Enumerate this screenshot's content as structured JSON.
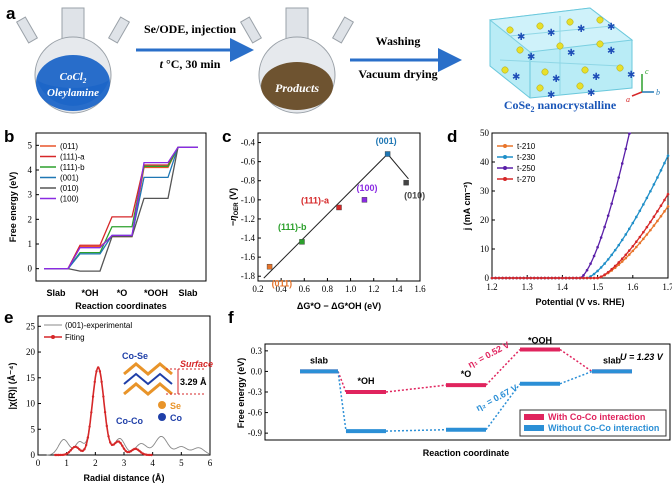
{
  "panel_a": {
    "label": "a",
    "flask1_line1": "CoCl",
    "flask1_sub": "2",
    "flask1_line2": "Oleylamine",
    "arrow1_top": "Se/ODE, injection",
    "arrow1_bottom_t": "t",
    "arrow1_bottom_rest": " °C, 30 min",
    "flask2_label": "Products",
    "arrow2_top": "Washing",
    "arrow2_bottom": "Vacuum drying",
    "crystal_label": "CoSe",
    "crystal_sub": "2",
    "crystal_label_rest": " nanocrystalline",
    "axis_c": "c",
    "axis_a": "a",
    "axis_b": "b",
    "colors": {
      "solution": "#1e66c8",
      "product": "#7a5a32",
      "crystal": "#5ad1e8",
      "label": "#1a56b8"
    }
  },
  "panel_b": {
    "label": "b",
    "ylabel": "Free energy (eV)",
    "xlabel": "Reaction coordinates",
    "yticks": [
      "5",
      "4",
      "3",
      "2",
      "1",
      "0"
    ],
    "xticks": [
      "Slab",
      "*OH",
      "*O",
      "*OOH",
      "Slab"
    ],
    "legend": [
      "(011)",
      "(111)-a",
      "(111)-b",
      "(001)",
      "(010)",
      "(100)"
    ]
  },
  "panel_c": {
    "label": "c",
    "ylabel": "−η",
    "ylabel_sub": "OER",
    "ylabel_unit": " (V)",
    "xlabel": "ΔG*O − ΔG*OH (eV)",
    "yticks": [
      "-0.4",
      "-0.6",
      "-0.8",
      "-1.0",
      "-1.2",
      "-1.4",
      "-1.6",
      "-1.8"
    ],
    "xticks": [
      "0.2",
      "0.4",
      "0.6",
      "0.8",
      "1.0",
      "1.2",
      "1.4",
      "1.6"
    ],
    "point_labels": [
      "(011)",
      "(111)-b",
      "(111)-a",
      "(100)",
      "(001)",
      "(010)"
    ]
  },
  "panel_d": {
    "label": "d",
    "ylabel": "j (mA cm⁻²)",
    "xlabel": "Potential (V vs. RHE)",
    "yticks": [
      "50",
      "40",
      "30",
      "20",
      "10",
      "0"
    ],
    "xticks": [
      "1.2",
      "1.3",
      "1.4",
      "1.5",
      "1.6",
      "1.7"
    ],
    "legend": [
      "t-210",
      "t-230",
      "t-250",
      "t-270"
    ]
  },
  "panel_e": {
    "label": "e",
    "ylabel": "|χ(R)| (Å⁻⁴)",
    "xlabel": "Radial distance (Å)",
    "yticks": [
      "25",
      "20",
      "15",
      "10",
      "5",
      "0"
    ],
    "xticks": [
      "0",
      "1",
      "2",
      "3",
      "4",
      "5",
      "6"
    ],
    "legend_exp": "(001)-experimental",
    "legend_fit": "Fiting",
    "peak1": "Co-Se",
    "peak2": "Co-Co",
    "surface": "Surface",
    "distance": "3.29 Å",
    "atom1": "Se",
    "atom2": "Co"
  },
  "panel_f": {
    "label": "f",
    "ylabel": "Free energy (eV)",
    "xlabel": "Reaction coordinate",
    "yticks": [
      "0.3",
      "0.0",
      "-0.3",
      "-0.6",
      "-0.9"
    ],
    "step_labels": [
      "slab",
      "*OH",
      "*O",
      "*OOH",
      "slab"
    ],
    "eta1": "η₁ = 0.52 V",
    "eta2": "η₂ = 0.67 V",
    "potential": "U = 1.23 V",
    "legend": [
      "With Co-Co interaction",
      "Without Co-Co interaction"
    ],
    "colors": {
      "with": "#e0245e",
      "without": "#2b8fd6"
    }
  },
  "chart_data": [
    {
      "type": "line",
      "title": "b",
      "xlabel": "Reaction coordinates",
      "ylabel": "Free energy (eV)",
      "categories": [
        "Slab",
        "*OH",
        "*O",
        "*OOH",
        "Slab"
      ],
      "ylim": [
        -0.5,
        5.5
      ],
      "series": [
        {
          "name": "(011)",
          "color": "#e8542a",
          "values": [
            0,
            0.9,
            1.3,
            4.1,
            4.92
          ]
        },
        {
          "name": "(111)-a",
          "color": "#d62728",
          "values": [
            0,
            0.95,
            2.1,
            4.2,
            4.92
          ]
        },
        {
          "name": "(111)-b",
          "color": "#2ca02c",
          "values": [
            0,
            0.65,
            1.7,
            4.15,
            4.92
          ]
        },
        {
          "name": "(001)",
          "color": "#1f77b4",
          "values": [
            0,
            0.6,
            1.35,
            3.7,
            4.92
          ]
        },
        {
          "name": "(010)",
          "color": "#555555",
          "values": [
            0,
            -0.1,
            1.3,
            2.85,
            4.92
          ]
        },
        {
          "name": "(100)",
          "color": "#8a2be2",
          "values": [
            0,
            0.85,
            1.35,
            4.3,
            4.92
          ]
        }
      ]
    },
    {
      "type": "scatter",
      "title": "c",
      "xlabel": "ΔG*O − ΔG*OH (eV)",
      "ylabel": "−η OER (V)",
      "xlim": [
        0.2,
        1.6
      ],
      "ylim": [
        -1.85,
        -0.3
      ],
      "points": [
        {
          "name": "(011)",
          "x": 0.3,
          "y": -1.7,
          "color": "#e8742a"
        },
        {
          "name": "(111)-b",
          "x": 0.58,
          "y": -1.44,
          "color": "#2ca02c"
        },
        {
          "name": "(111)-a",
          "x": 0.9,
          "y": -1.08,
          "color": "#d62728"
        },
        {
          "name": "(100)",
          "x": 1.12,
          "y": -1.0,
          "color": "#8a2be2"
        },
        {
          "name": "(001)",
          "x": 1.32,
          "y": -0.52,
          "color": "#1f77b4"
        },
        {
          "name": "(010)",
          "x": 1.48,
          "y": -0.82,
          "color": "#444444"
        }
      ],
      "fit_lines": [
        {
          "x": [
            0.25,
            1.32
          ],
          "y": [
            -1.82,
            -0.52
          ]
        },
        {
          "x": [
            1.32,
            1.5
          ],
          "y": [
            -0.52,
            -0.78
          ]
        }
      ]
    },
    {
      "type": "line",
      "title": "d",
      "xlabel": "Potential (V vs. RHE)",
      "ylabel": "j (mA cm⁻²)",
      "xlim": [
        1.2,
        1.7
      ],
      "ylim": [
        0,
        50
      ],
      "series": [
        {
          "name": "t-210",
          "color": "#e8742a",
          "onset": 1.5,
          "k": 235,
          "p": 1.4
        },
        {
          "name": "t-230",
          "color": "#1f8fc8",
          "onset": 1.47,
          "k": 330,
          "p": 1.4
        },
        {
          "name": "t-250",
          "color": "#5a1fa8",
          "onset": 1.45,
          "k": 950,
          "p": 1.5
        },
        {
          "name": "t-270",
          "color": "#d62728",
          "onset": 1.5,
          "k": 275,
          "p": 1.4
        }
      ]
    },
    {
      "type": "line",
      "title": "e",
      "xlabel": "Radial distance (Å)",
      "ylabel": "|χ(R)| (Å⁻⁴)",
      "xlim": [
        0,
        6
      ],
      "ylim": [
        0,
        27
      ],
      "peaks": [
        {
          "name": "Co-Se",
          "x": 2.1,
          "y": 17.0
        },
        {
          "name": "Co-Co",
          "x": 2.85,
          "y": 3.2
        }
      ]
    },
    {
      "type": "line",
      "title": "f",
      "xlabel": "Reaction coordinate",
      "ylabel": "Free energy (eV)",
      "categories": [
        "slab",
        "*OH",
        "*O",
        "*OOH",
        "slab"
      ],
      "ylim": [
        -1.0,
        0.4
      ],
      "series": [
        {
          "name": "With Co-Co interaction",
          "values": [
            0,
            -0.3,
            -0.2,
            0.32,
            0
          ]
        },
        {
          "name": "Without Co-Co interaction",
          "values": [
            0,
            -0.87,
            -0.85,
            -0.18,
            0
          ]
        }
      ]
    }
  ]
}
